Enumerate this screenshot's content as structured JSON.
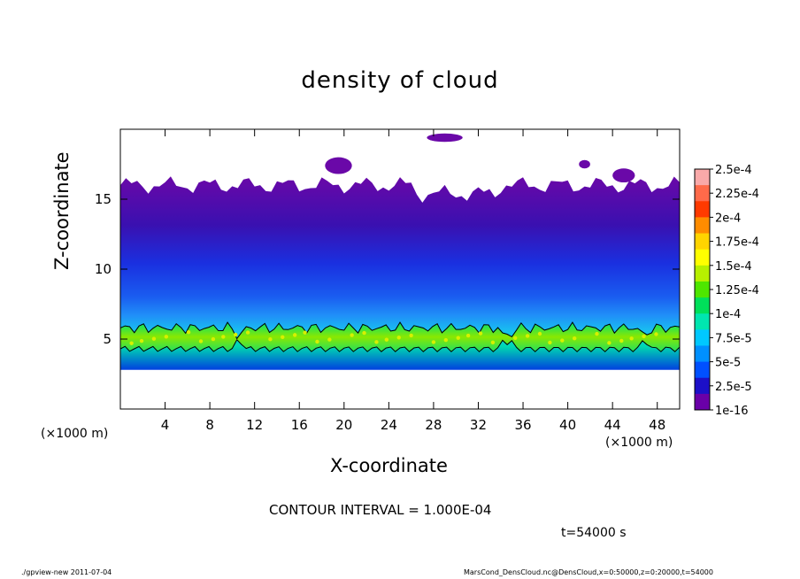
{
  "chart_data": {
    "type": "heatmap",
    "title": "density of cloud",
    "xlabel": "X-coordinate",
    "ylabel": "Z-coordinate",
    "x_unit_label": "(×1000 m)",
    "x_ticks": [
      4,
      8,
      12,
      16,
      20,
      24,
      28,
      32,
      36,
      40,
      44,
      48
    ],
    "y_ticks": [
      5,
      10,
      15
    ],
    "xlim": [
      0,
      50
    ],
    "ylim": [
      0,
      20
    ],
    "colorbar": {
      "labels": [
        "2.5e-4",
        "2.25e-4",
        "2e-4",
        "1.75e-4",
        "1.5e-4",
        "1.25e-4",
        "1e-4",
        "7.5e-5",
        "5e-5",
        "2.5e-5",
        "1e-16"
      ],
      "colors": [
        "#f9a9a9",
        "#ff6a4a",
        "#ff3a00",
        "#ff8c00",
        "#ffd400",
        "#ffff00",
        "#b7f000",
        "#4ee600",
        "#00e05a",
        "#00e6b0",
        "#00c8ff",
        "#0090ff",
        "#0050ff",
        "#1c10c8",
        "#6a00a8"
      ]
    },
    "cloud_layers": {
      "upper_cloud": {
        "z_bottom": 2.8,
        "z_top": 16.0,
        "level": "1e-16 to 2.5e-5"
      },
      "dense_band": {
        "z_bottom": 4.3,
        "z_top": 5.8,
        "level": "1e-4 to 1.75e-4"
      },
      "contour_level": "1e-4"
    },
    "contour_interval": "CONTOUR INTERVAL = 1.000E-04",
    "time": "t=54000 s"
  },
  "footer": {
    "left": "./gpview-new   2011-07-04",
    "right": "MarsCond_DensCloud.nc@DensCloud,x=0:50000,z=0:20000,t=54000"
  }
}
